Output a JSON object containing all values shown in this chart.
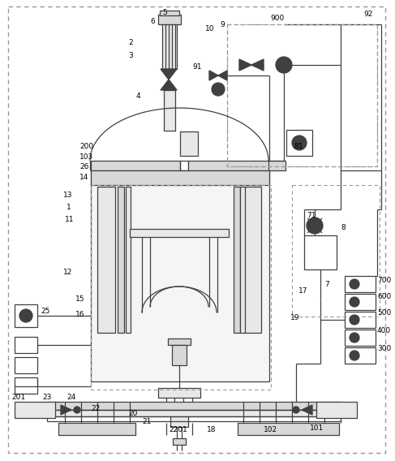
{
  "bg_color": "#ffffff",
  "line_color": "#404040",
  "dashed_color": "#999999",
  "gray_fill": "#e8e8e8",
  "dark_fill": "#c8c8c8",
  "mid_fill": "#d8d8d8"
}
